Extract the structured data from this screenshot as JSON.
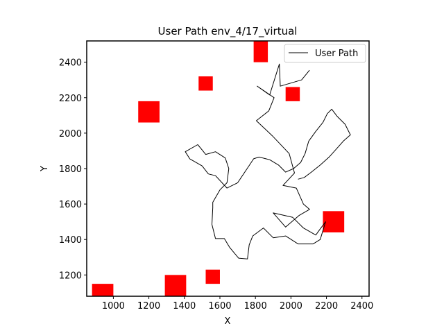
{
  "chart_data": {
    "type": "line",
    "title": "User Path env_4/17_virtual",
    "xlabel": "X",
    "ylabel": "Y",
    "xlim": [
      850,
      2440
    ],
    "ylim": [
      1080,
      2520
    ],
    "xticks": [
      1000,
      1200,
      1400,
      1600,
      1800,
      2000,
      2200,
      2400
    ],
    "yticks": [
      1200,
      1400,
      1600,
      1800,
      2000,
      2200,
      2400
    ],
    "grid": false,
    "legend_location": "top-right",
    "series": [
      {
        "name": "User Path",
        "color": "#000000",
        "points": [
          [
            2105,
            2355
          ],
          [
            2060,
            2300
          ],
          [
            1940,
            2265
          ],
          [
            1935,
            2390
          ],
          [
            1880,
            2215
          ],
          [
            1810,
            2265
          ],
          [
            1905,
            2200
          ],
          [
            1875,
            2125
          ],
          [
            1805,
            2070
          ],
          [
            1895,
            1985
          ],
          [
            1990,
            1885
          ],
          [
            2020,
            1775
          ],
          [
            1955,
            1705
          ],
          [
            2030,
            1690
          ],
          [
            2070,
            1600
          ],
          [
            2105,
            1570
          ],
          [
            2045,
            1535
          ],
          [
            1970,
            1470
          ],
          [
            1900,
            1550
          ],
          [
            2010,
            1525
          ],
          [
            2070,
            1465
          ],
          [
            2140,
            1425
          ],
          [
            2165,
            1460
          ],
          [
            2195,
            1500
          ],
          [
            2165,
            1400
          ],
          [
            2125,
            1375
          ],
          [
            2040,
            1375
          ],
          [
            1970,
            1420
          ],
          [
            1900,
            1410
          ],
          [
            1845,
            1465
          ],
          [
            1785,
            1420
          ],
          [
            1765,
            1370
          ],
          [
            1755,
            1290
          ],
          [
            1705,
            1295
          ],
          [
            1655,
            1355
          ],
          [
            1625,
            1405
          ],
          [
            1575,
            1405
          ],
          [
            1555,
            1485
          ],
          [
            1560,
            1580
          ],
          [
            1560,
            1610
          ],
          [
            1600,
            1680
          ],
          [
            1640,
            1720
          ],
          [
            1650,
            1800
          ],
          [
            1630,
            1860
          ],
          [
            1575,
            1895
          ],
          [
            1520,
            1880
          ],
          [
            1500,
            1905
          ],
          [
            1475,
            1935
          ],
          [
            1405,
            1895
          ],
          [
            1430,
            1855
          ],
          [
            1500,
            1815
          ],
          [
            1535,
            1770
          ],
          [
            1575,
            1760
          ],
          [
            1640,
            1690
          ],
          [
            1700,
            1720
          ],
          [
            1770,
            1825
          ],
          [
            1790,
            1855
          ],
          [
            1820,
            1865
          ],
          [
            1880,
            1850
          ],
          [
            1930,
            1820
          ],
          [
            1970,
            1780
          ],
          [
            2015,
            1800
          ],
          [
            2055,
            1835
          ],
          [
            2080,
            1885
          ],
          [
            2100,
            1955
          ],
          [
            2140,
            2010
          ],
          [
            2180,
            2060
          ],
          [
            2205,
            2110
          ],
          [
            2230,
            2135
          ],
          [
            2260,
            2095
          ],
          [
            2305,
            2050
          ],
          [
            2335,
            1990
          ],
          [
            2295,
            1955
          ],
          [
            2260,
            1915
          ],
          [
            2215,
            1865
          ],
          [
            2165,
            1820
          ],
          [
            2115,
            1780
          ],
          [
            2075,
            1750
          ],
          [
            2040,
            1740
          ]
        ]
      }
    ],
    "obstacles": [
      {
        "color": "#ff0000",
        "x": [
          1790,
          1870
        ],
        "y": [
          2400,
          2520
        ]
      },
      {
        "color": "#ff0000",
        "x": [
          1480,
          1560
        ],
        "y": [
          2240,
          2320
        ]
      },
      {
        "color": "#ff0000",
        "x": [
          1970,
          2050
        ],
        "y": [
          2180,
          2260
        ]
      },
      {
        "color": "#ff0000",
        "x": [
          1140,
          1260
        ],
        "y": [
          2060,
          2180
        ]
      },
      {
        "color": "#ff0000",
        "x": [
          2180,
          2300
        ],
        "y": [
          1440,
          1560
        ]
      },
      {
        "color": "#ff0000",
        "x": [
          1520,
          1600
        ],
        "y": [
          1150,
          1230
        ]
      },
      {
        "color": "#ff0000",
        "x": [
          1290,
          1410
        ],
        "y": [
          1080,
          1200
        ]
      },
      {
        "color": "#ff0000",
        "x": [
          880,
          1000
        ],
        "y": [
          1080,
          1150
        ]
      }
    ]
  }
}
